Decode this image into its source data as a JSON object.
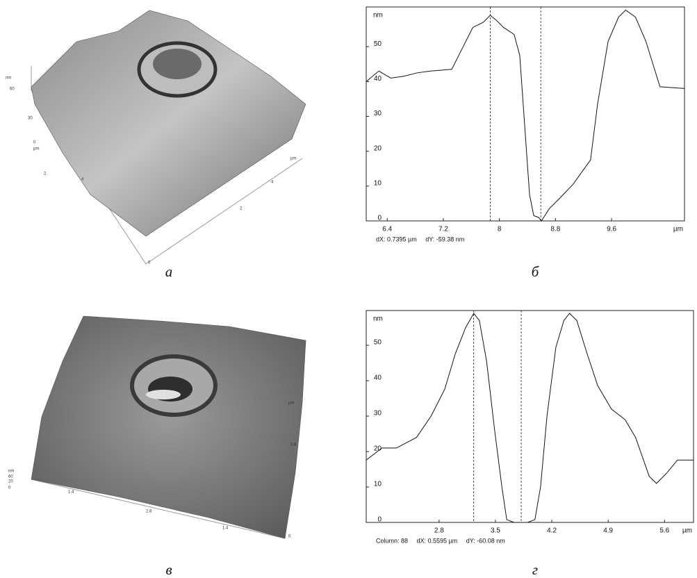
{
  "chart_data": [
    {
      "type": "line",
      "label": "б",
      "y_label": "nm",
      "x_label": "µm",
      "annotation": "dX: 0.7395 µm     dY: -59.38 nm",
      "x": [
        6.1,
        6.28,
        6.45,
        6.63,
        6.83,
        7.02,
        7.32,
        7.47,
        7.62,
        7.77,
        7.87,
        7.96,
        8.06,
        8.21,
        8.29,
        8.36,
        8.43,
        8.49,
        8.56,
        8.6,
        8.71,
        8.86,
        9.05,
        9.3,
        9.4,
        9.55,
        9.7,
        9.8,
        9.94,
        10.09,
        10.29,
        10.64
      ],
      "series": [
        {
          "color": "#111111",
          "values": [
            40,
            43,
            41,
            41.5,
            42.5,
            43,
            43.5,
            49.5,
            55.5,
            57,
            59,
            57.5,
            55.5,
            53.5,
            47.5,
            27.5,
            7.5,
            1.5,
            1,
            0,
            3.5,
            6.5,
            10.5,
            17.5,
            33.5,
            51.5,
            58.5,
            60.5,
            58.5,
            51.5,
            38.5,
            38
          ]
        }
      ],
      "cursors": [
        7.87,
        8.59
      ],
      "xlim": [
        6.1,
        10.64
      ],
      "ylim": [
        0,
        61.4
      ],
      "xticks": [
        6.4,
        7.2,
        8,
        8.8,
        9.6
      ],
      "yticks": [
        0,
        10,
        20,
        30,
        40,
        50
      ],
      "grid": false
    },
    {
      "type": "line",
      "label": "г",
      "y_label": "nm",
      "x_label": "µm",
      "annotation": "Column: 88     dX: 0.5595 µm     dY: -60.08 nm",
      "x": [
        1.895,
        2.09,
        2.27,
        2.52,
        2.7,
        2.87,
        3.0,
        3.13,
        3.23,
        3.3,
        3.39,
        3.49,
        3.58,
        3.64,
        3.73,
        3.9,
        3.99,
        4.06,
        4.14,
        4.25,
        4.35,
        4.42,
        4.51,
        4.64,
        4.77,
        4.94,
        5.11,
        5.24,
        5.41,
        5.5,
        5.63,
        5.76,
        5.96
      ],
      "series": [
        {
          "color": "#111111",
          "values": [
            17.6,
            21,
            21,
            24,
            30,
            37.6,
            47.5,
            55,
            59,
            57,
            45.5,
            26,
            10,
            0.8,
            0,
            0,
            0.8,
            10,
            30,
            49.4,
            57,
            59,
            57,
            47.5,
            38.6,
            32,
            29,
            24,
            13,
            11,
            14,
            17.6,
            17.6
          ]
        }
      ],
      "cursors": [
        3.23,
        3.82
      ],
      "xlim": [
        1.895,
        5.96
      ],
      "ylim": [
        0,
        59.8
      ],
      "xticks": [
        2.8,
        3.5,
        4.2,
        4.9,
        5.6
      ],
      "yticks": [
        0,
        10,
        20,
        30,
        40,
        50
      ],
      "grid": false
    }
  ],
  "surface_plots": [
    {
      "label": "а",
      "axis_texts": [
        "nm",
        "60",
        "30",
        "0",
        "µm",
        "2",
        "4",
        "µm",
        "4",
        "2",
        "0"
      ]
    },
    {
      "label": "в",
      "axis_texts": [
        "nm",
        "60",
        "20",
        "0",
        "µm",
        "2.8",
        "1.4",
        "2.8",
        "1.4",
        "0"
      ]
    }
  ]
}
